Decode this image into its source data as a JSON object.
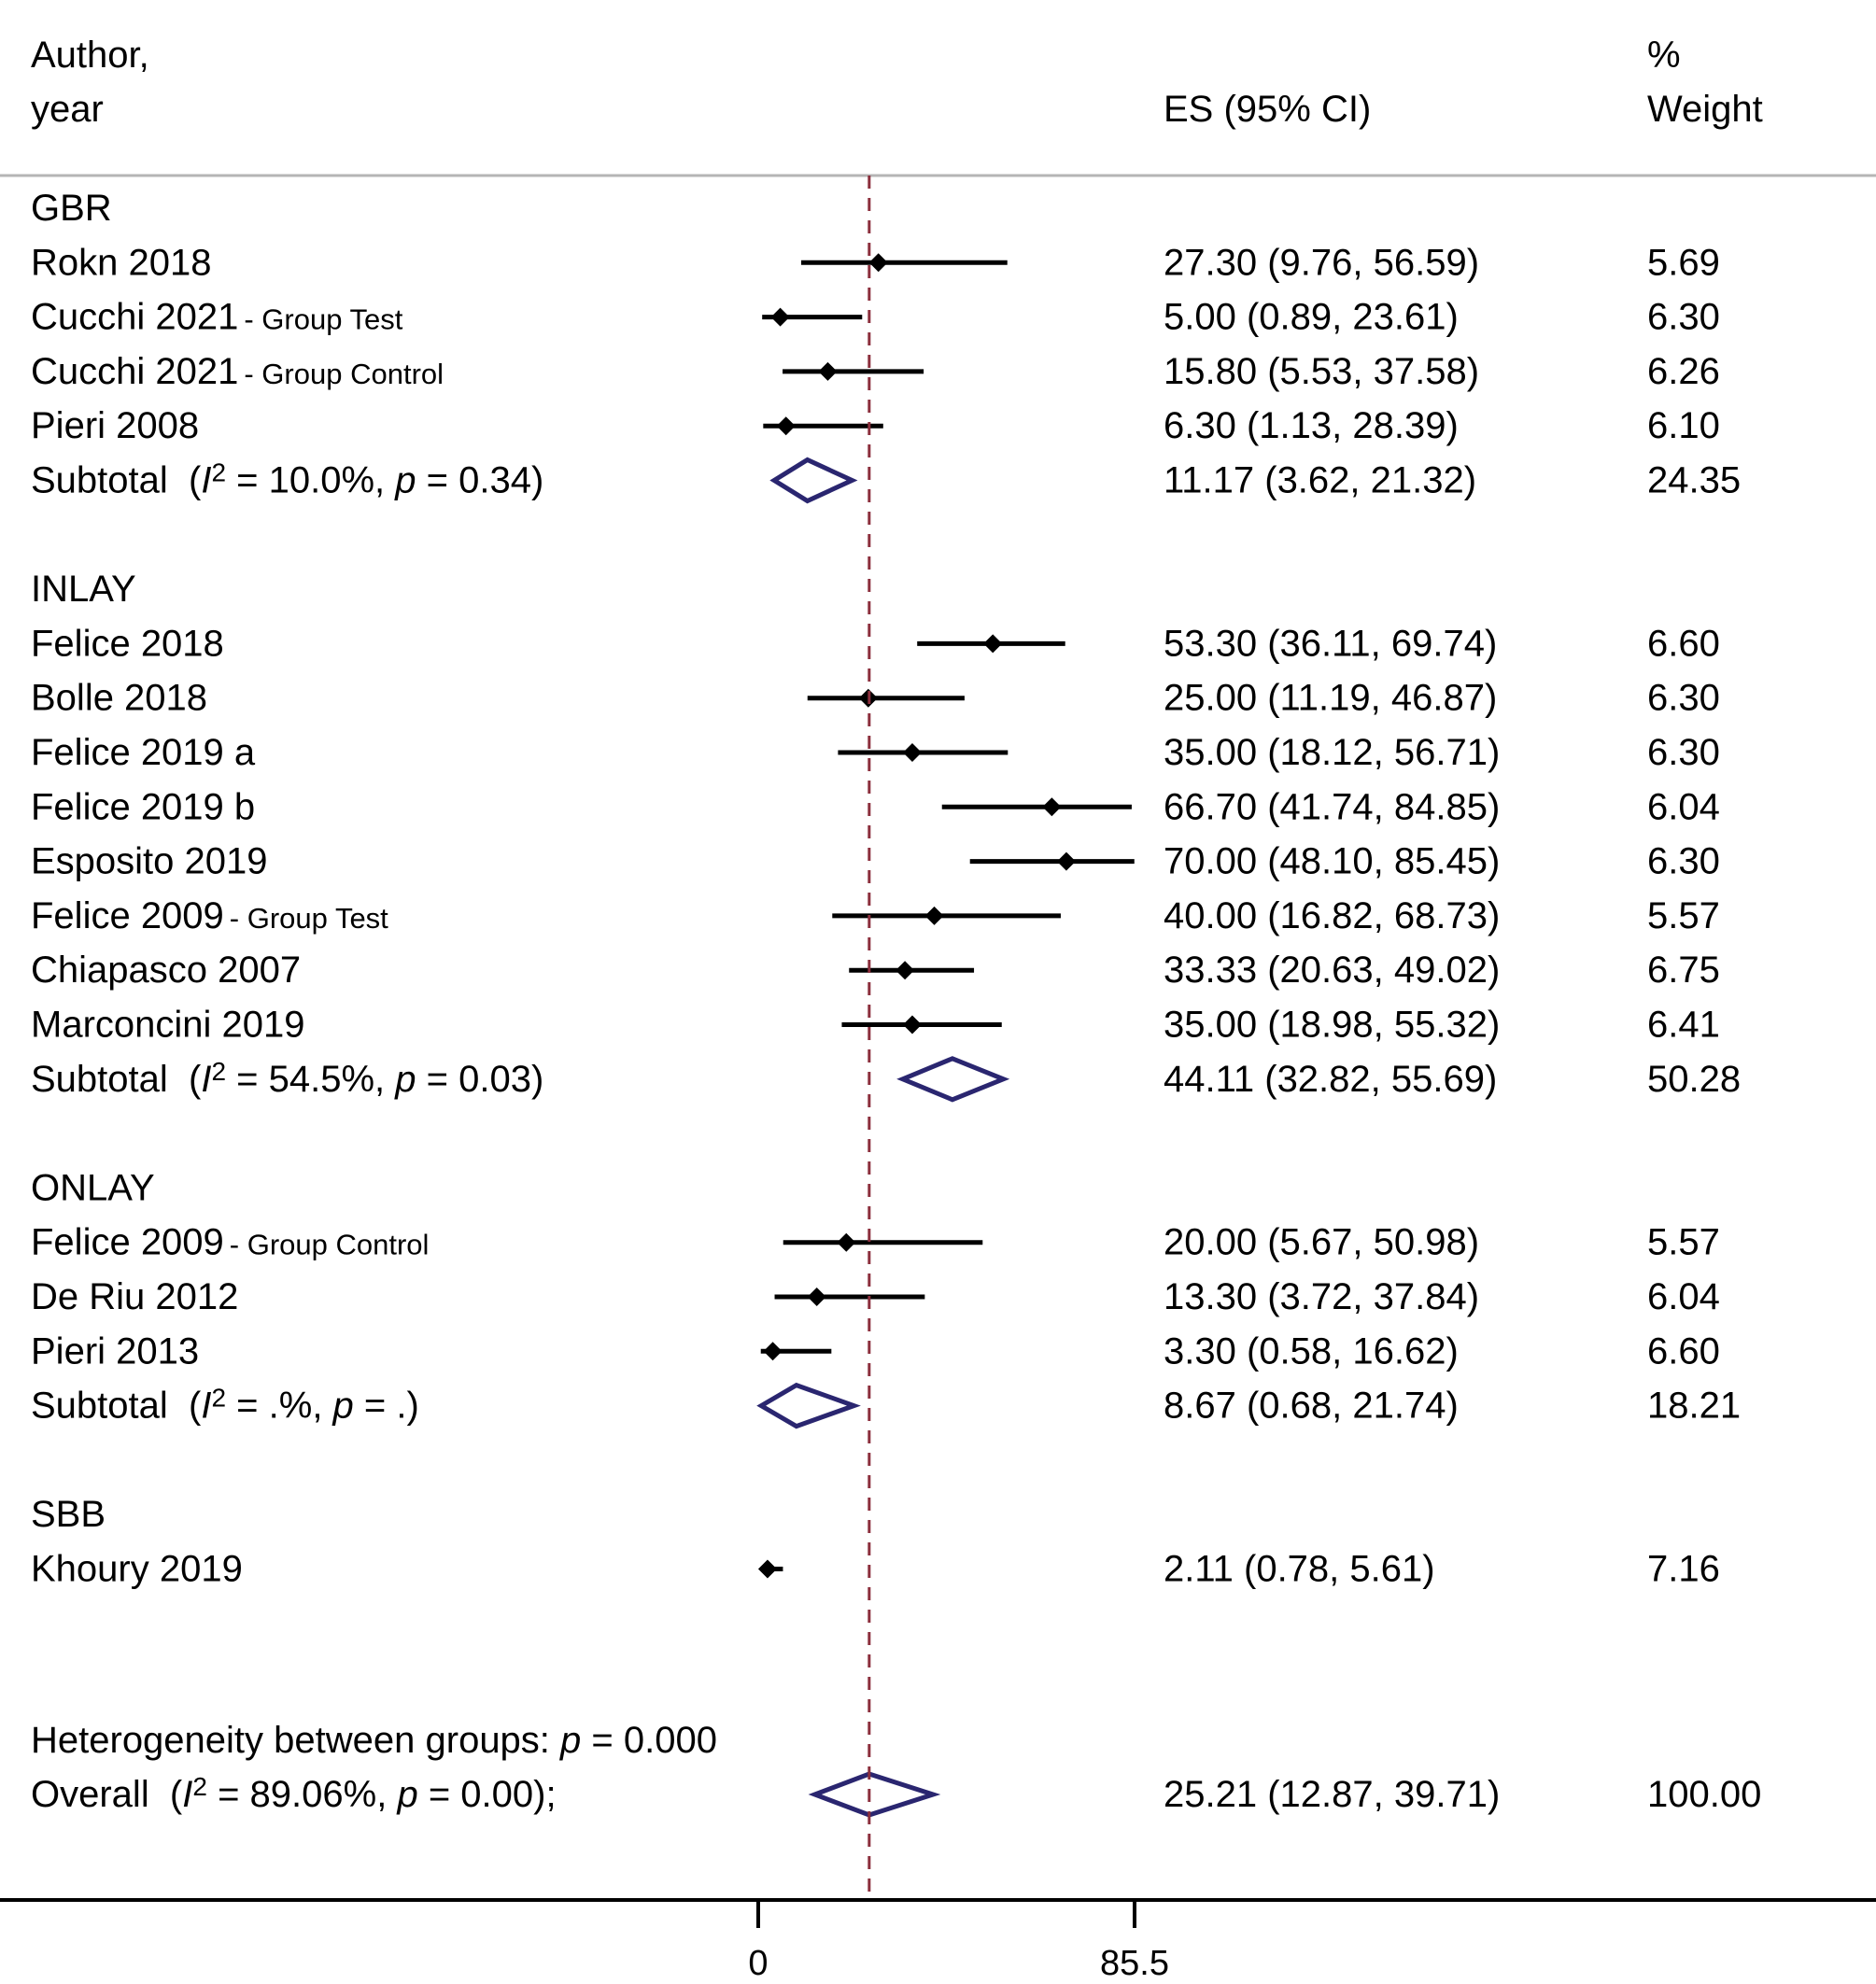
{
  "chart_data": {
    "type": "forest",
    "title": "",
    "header": {
      "author_line1": "Author,",
      "author_line2": "year",
      "es_label": "ES (95% CI)",
      "weight_line1": "%",
      "weight_line2": "Weight"
    },
    "xaxis": {
      "ticks": [
        0,
        85.5
      ],
      "tick_labels": [
        "0",
        "85.5"
      ]
    },
    "reference_line": 25.21,
    "colors": {
      "reference_line": "#8b2e3c",
      "diamond": "#2a2670",
      "points": "#000000"
    },
    "groups": [
      {
        "name": "GBR",
        "studies": [
          {
            "author": "Rokn 2018",
            "note": "",
            "es": 27.3,
            "lo": 9.76,
            "hi": 56.59,
            "es_text": "27.30 (9.76, 56.59)",
            "weight": "5.69"
          },
          {
            "author": "Cucchi 2021",
            "note": "- Group Test",
            "es": 5.0,
            "lo": 0.89,
            "hi": 23.61,
            "es_text": "5.00 (0.89, 23.61)",
            "weight": "6.30"
          },
          {
            "author": "Cucchi 2021",
            "note": "- Group Control",
            "es": 15.8,
            "lo": 5.53,
            "hi": 37.58,
            "es_text": "15.80 (5.53, 37.58)",
            "weight": "6.26"
          },
          {
            "author": "Pieri 2008",
            "note": "",
            "es": 6.3,
            "lo": 1.13,
            "hi": 28.39,
            "es_text": "6.30 (1.13, 28.39)",
            "weight": "6.10"
          }
        ],
        "subtotal": {
          "label": "Subtotal",
          "i2": "10.0%",
          "p": "0.34",
          "es": 11.17,
          "lo": 3.62,
          "hi": 21.32,
          "es_text": "11.17 (3.62, 21.32)",
          "weight": "24.35"
        }
      },
      {
        "name": "INLAY",
        "studies": [
          {
            "author": "Felice 2018",
            "note": "",
            "es": 53.3,
            "lo": 36.11,
            "hi": 69.74,
            "es_text": "53.30 (36.11, 69.74)",
            "weight": "6.60"
          },
          {
            "author": "Bolle 2018",
            "note": "",
            "es": 25.0,
            "lo": 11.19,
            "hi": 46.87,
            "es_text": "25.00 (11.19, 46.87)",
            "weight": "6.30"
          },
          {
            "author": "Felice 2019 a",
            "note": "",
            "es": 35.0,
            "lo": 18.12,
            "hi": 56.71,
            "es_text": "35.00 (18.12, 56.71)",
            "weight": "6.30"
          },
          {
            "author": "Felice 2019 b",
            "note": "",
            "es": 66.7,
            "lo": 41.74,
            "hi": 84.85,
            "es_text": "66.70 (41.74, 84.85)",
            "weight": "6.04"
          },
          {
            "author": "Esposito 2019",
            "note": "",
            "es": 70.0,
            "lo": 48.1,
            "hi": 85.45,
            "es_text": "70.00 (48.10, 85.45)",
            "weight": "6.30"
          },
          {
            "author": "Felice 2009",
            "note": "- Group Test",
            "es": 40.0,
            "lo": 16.82,
            "hi": 68.73,
            "es_text": "40.00 (16.82, 68.73)",
            "weight": "5.57"
          },
          {
            "author": "Chiapasco 2007",
            "note": "",
            "es": 33.33,
            "lo": 20.63,
            "hi": 49.02,
            "es_text": "33.33 (20.63, 49.02)",
            "weight": "6.75"
          },
          {
            "author": "Marconcini 2019",
            "note": "",
            "es": 35.0,
            "lo": 18.98,
            "hi": 55.32,
            "es_text": "35.00 (18.98, 55.32)",
            "weight": "6.41"
          }
        ],
        "subtotal": {
          "label": "Subtotal",
          "i2": "54.5%",
          "p": "0.03",
          "es": 44.11,
          "lo": 32.82,
          "hi": 55.69,
          "es_text": "44.11 (32.82, 55.69)",
          "weight": "50.28"
        }
      },
      {
        "name": "ONLAY",
        "studies": [
          {
            "author": "Felice 2009",
            "note": "- Group Control",
            "es": 20.0,
            "lo": 5.67,
            "hi": 50.98,
            "es_text": "20.00 (5.67, 50.98)",
            "weight": "5.57"
          },
          {
            "author": "De Riu 2012",
            "note": "",
            "es": 13.3,
            "lo": 3.72,
            "hi": 37.84,
            "es_text": "13.30 (3.72, 37.84)",
            "weight": "6.04"
          },
          {
            "author": "Pieri 2013",
            "note": "",
            "es": 3.3,
            "lo": 0.58,
            "hi": 16.62,
            "es_text": "3.30 (0.58, 16.62)",
            "weight": "6.60"
          }
        ],
        "subtotal": {
          "label": "Subtotal",
          "i2": ".%",
          "p": ".",
          "es": 8.67,
          "lo": 0.68,
          "hi": 21.74,
          "es_text": "8.67 (0.68, 21.74)",
          "weight": "18.21"
        }
      },
      {
        "name": "SBB",
        "studies": [
          {
            "author": "Khoury 2019",
            "note": "",
            "es": 2.11,
            "lo": 0.78,
            "hi": 5.61,
            "es_text": "2.11 (0.78, 5.61)",
            "weight": "7.16"
          }
        ],
        "subtotal": null
      }
    ],
    "heterogeneity": {
      "label": "Heterogeneity between groups:",
      "p": "0.000"
    },
    "overall": {
      "label": "Overall",
      "i2": "89.06%",
      "p": "0.00",
      "es": 25.21,
      "lo": 12.87,
      "hi": 39.71,
      "es_text": "25.21 (12.87, 39.71)",
      "weight": "100.00"
    }
  }
}
